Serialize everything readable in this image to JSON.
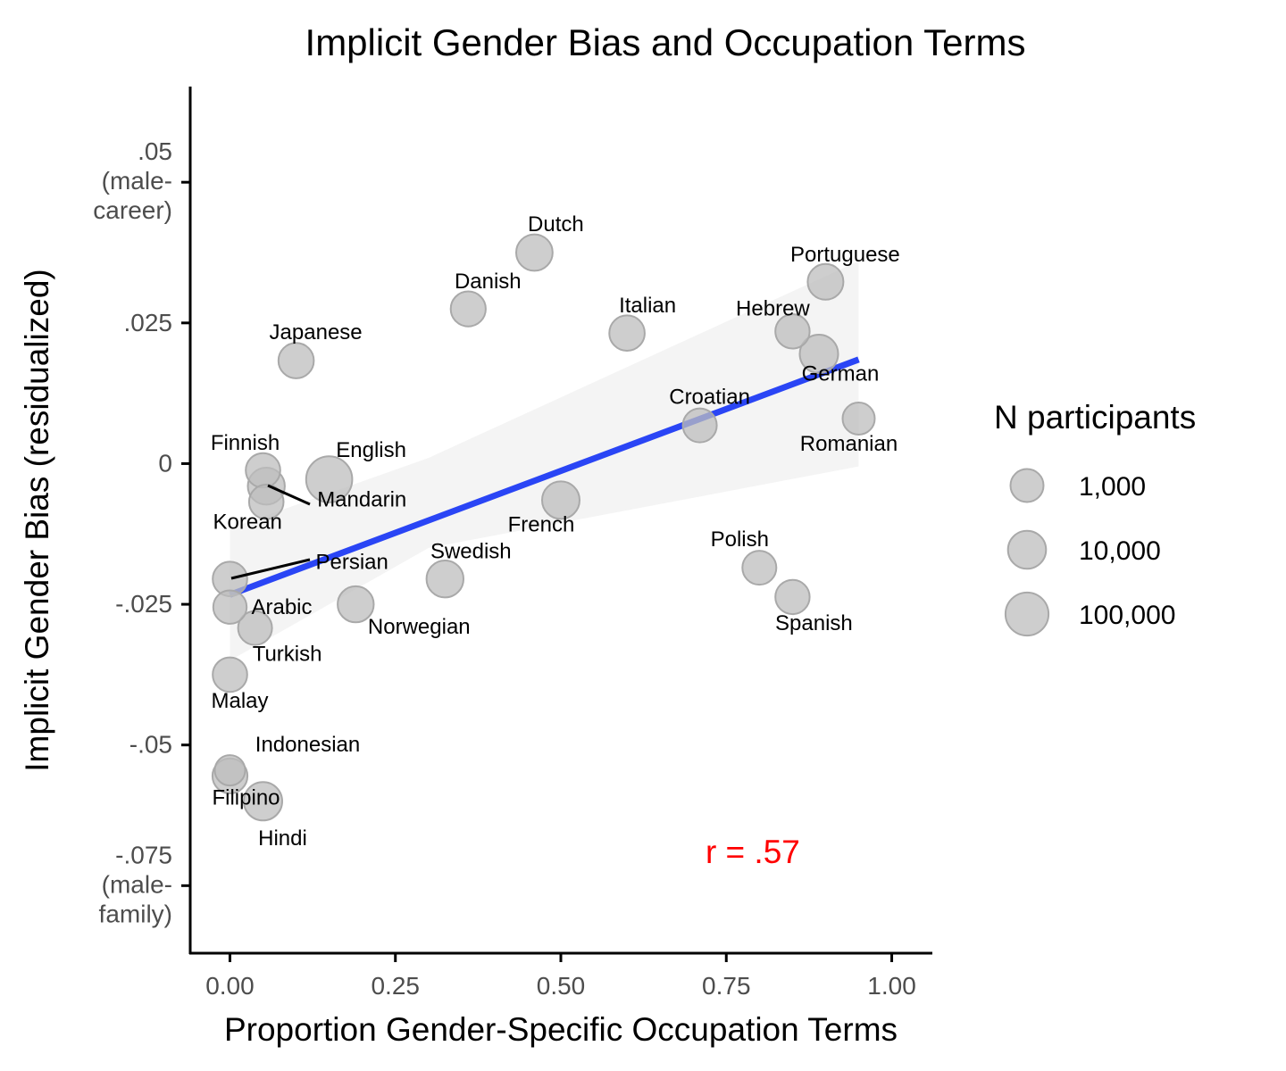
{
  "chart_data": {
    "type": "scatter",
    "title": "Implicit Gender Bias and Occupation Terms",
    "xlabel": "Proportion Gender-Specific Occupation Terms",
    "ylabel": "Implicit Gender Bias (residualized)",
    "xlim": [
      -0.06,
      1.06
    ],
    "ylim": [
      -0.087,
      0.067
    ],
    "x_ticks": [
      {
        "value": 0.0,
        "label": "0.00"
      },
      {
        "value": 0.25,
        "label": "0.25"
      },
      {
        "value": 0.5,
        "label": "0.50"
      },
      {
        "value": 0.75,
        "label": "0.75"
      },
      {
        "value": 1.0,
        "label": "1.00"
      }
    ],
    "y_ticks": [
      {
        "value": 0.05,
        "lines": [
          ".05",
          "(male-",
          "career)"
        ]
      },
      {
        "value": 0.025,
        "lines": [
          ".025"
        ]
      },
      {
        "value": 0.0,
        "lines": [
          "0"
        ]
      },
      {
        "value": -0.025,
        "lines": [
          "-.025"
        ]
      },
      {
        "value": -0.05,
        "lines": [
          "-.05"
        ]
      },
      {
        "value": -0.075,
        "lines": [
          "-.075",
          "(male-",
          "family)"
        ]
      }
    ],
    "points": [
      {
        "label": "Dutch",
        "x": 0.46,
        "y": 0.0375,
        "n": 5000
      },
      {
        "label": "Danish",
        "x": 0.36,
        "y": 0.0275,
        "n": 2500
      },
      {
        "label": "Italian",
        "x": 0.6,
        "y": 0.0232,
        "n": 3000
      },
      {
        "label": "Portuguese",
        "x": 0.9,
        "y": 0.0323,
        "n": 3500
      },
      {
        "label": "Hebrew",
        "x": 0.85,
        "y": 0.0235,
        "n": 1800
      },
      {
        "label": "German",
        "x": 0.89,
        "y": 0.0195,
        "n": 12000
      },
      {
        "label": "Japanese",
        "x": 0.1,
        "y": 0.0183,
        "n": 3000
      },
      {
        "label": "Croatian",
        "x": 0.71,
        "y": 0.0068,
        "n": 1500
      },
      {
        "label": "Romanian",
        "x": 0.95,
        "y": 0.008,
        "n": 700
      },
      {
        "label": "Finnish",
        "x": 0.05,
        "y": -0.0012,
        "n": 2000
      },
      {
        "label": "English",
        "x": 0.15,
        "y": -0.0028,
        "n": 400000
      },
      {
        "label": "Mandarin",
        "x": 0.055,
        "y": -0.004,
        "n": 6000
      },
      {
        "label": "Korean",
        "x": 0.055,
        "y": -0.0068,
        "n": 2000
      },
      {
        "label": "French",
        "x": 0.5,
        "y": -0.0065,
        "n": 8000
      },
      {
        "label": "Persian",
        "x": 0.0,
        "y": -0.0205,
        "n": 2000
      },
      {
        "label": "Swedish",
        "x": 0.325,
        "y": -0.0205,
        "n": 6000
      },
      {
        "label": "Polish",
        "x": 0.8,
        "y": -0.0185,
        "n": 1500
      },
      {
        "label": "Spanish",
        "x": 0.85,
        "y": -0.0237,
        "n": 1800
      },
      {
        "label": "Arabic",
        "x": 0.0,
        "y": -0.0255,
        "n": 1200
      },
      {
        "label": "Norwegian",
        "x": 0.19,
        "y": -0.025,
        "n": 4000
      },
      {
        "label": "Turkish",
        "x": 0.038,
        "y": -0.0292,
        "n": 1500
      },
      {
        "label": "Malay",
        "x": 0.0,
        "y": -0.0375,
        "n": 2000
      },
      {
        "label": "Indonesian",
        "x": 0.0,
        "y": -0.0545,
        "n": 300
      },
      {
        "label": "Filipino",
        "x": 0.0,
        "y": -0.0555,
        "n": 2500
      },
      {
        "label": "Hindi",
        "x": 0.05,
        "y": -0.06,
        "n": 12000
      }
    ],
    "regression": {
      "x": [
        0.0,
        0.95
      ],
      "y": [
        -0.0233,
        0.0185
      ],
      "ci_upper": [
        -0.0115,
        0.036
      ],
      "ci_lower": [
        -0.035,
        -0.0005
      ],
      "ci_mid_x": 0.3,
      "ci_mid_upper": 0.001,
      "ci_mid_lower": -0.015,
      "color": "#2a45f5"
    },
    "annotation": {
      "text": "r = .57",
      "x": 0.79,
      "y": -0.071,
      "color": "#ff0000"
    },
    "legend": {
      "title": "N participants",
      "placement": "right",
      "entries": [
        {
          "label": "1,000",
          "n": 1000
        },
        {
          "label": "10,000",
          "n": 10000
        },
        {
          "label": "100,000",
          "n": 100000
        }
      ]
    },
    "point_color": "#bdbdbd",
    "grid": false
  }
}
